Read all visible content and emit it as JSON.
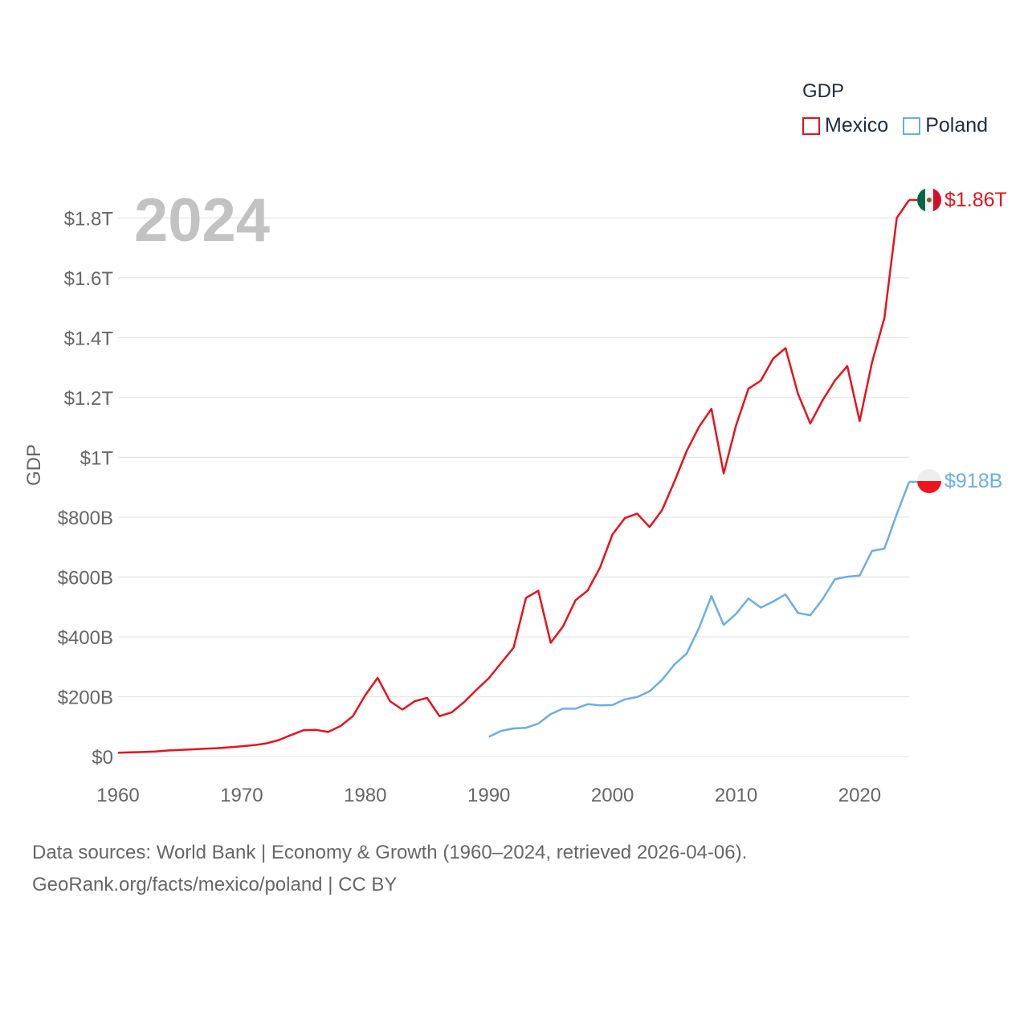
{
  "legend": {
    "title": "GDP",
    "mexico_label": "Mexico",
    "poland_label": "Poland"
  },
  "footer": {
    "line1": "Data sources: World Bank | Economy & Growth (1960–2024, retrieved 2026-04-06).",
    "line2": "GeoRank.org/facts/mexico/poland | CC BY"
  },
  "colors": {
    "mexico": "#e8121b",
    "poland": "#6aaee6",
    "grid": "#e6e6e6",
    "axis_text": "#666666",
    "watermark": "#c2c2c2"
  },
  "chart_data": {
    "type": "line",
    "title": "",
    "year_label": "2024",
    "xlabel": "",
    "ylabel": "GDP",
    "xlim": [
      1960,
      2024
    ],
    "ylim": [
      0,
      1.86
    ],
    "y_unit": "trillion USD",
    "x_ticks": [
      "1960",
      "1970",
      "1980",
      "1990",
      "2000",
      "2010",
      "2020"
    ],
    "y_ticks": [
      {
        "value": 0,
        "label": "$0"
      },
      {
        "value": 0.2,
        "label": "$200B"
      },
      {
        "value": 0.4,
        "label": "$400B"
      },
      {
        "value": 0.6,
        "label": "$600B"
      },
      {
        "value": 0.8,
        "label": "$800B"
      },
      {
        "value": 1.0,
        "label": "$1T"
      },
      {
        "value": 1.2,
        "label": "$1.2T"
      },
      {
        "value": 1.4,
        "label": "$1.4T"
      },
      {
        "value": 1.6,
        "label": "$1.6T"
      },
      {
        "value": 1.8,
        "label": "$1.8T"
      }
    ],
    "grid": true,
    "legend_position": "top-right",
    "series": [
      {
        "name": "Mexico",
        "end_label": "$1.86T",
        "x": [
          1960,
          1961,
          1962,
          1963,
          1964,
          1965,
          1966,
          1967,
          1968,
          1969,
          1970,
          1971,
          1972,
          1973,
          1974,
          1975,
          1976,
          1977,
          1978,
          1979,
          1980,
          1981,
          1982,
          1983,
          1984,
          1985,
          1986,
          1987,
          1988,
          1989,
          1990,
          1991,
          1992,
          1993,
          1994,
          1995,
          1996,
          1997,
          1998,
          1999,
          2000,
          2001,
          2002,
          2003,
          2004,
          2005,
          2006,
          2007,
          2008,
          2009,
          2010,
          2011,
          2012,
          2013,
          2014,
          2015,
          2016,
          2017,
          2018,
          2019,
          2020,
          2021,
          2022,
          2023,
          2024
        ],
        "values": [
          0.013,
          0.014,
          0.015,
          0.017,
          0.02,
          0.022,
          0.024,
          0.026,
          0.028,
          0.031,
          0.034,
          0.038,
          0.044,
          0.055,
          0.072,
          0.088,
          0.089,
          0.082,
          0.102,
          0.135,
          0.205,
          0.263,
          0.185,
          0.157,
          0.185,
          0.196,
          0.135,
          0.148,
          0.182,
          0.223,
          0.262,
          0.313,
          0.364,
          0.53,
          0.554,
          0.38,
          0.435,
          0.522,
          0.555,
          0.632,
          0.742,
          0.797,
          0.812,
          0.767,
          0.823,
          0.918,
          1.021,
          1.102,
          1.162,
          0.946,
          1.107,
          1.229,
          1.256,
          1.33,
          1.365,
          1.213,
          1.113,
          1.191,
          1.257,
          1.305,
          1.121,
          1.317,
          1.466,
          1.8,
          1.86
        ]
      },
      {
        "name": "Poland",
        "end_label": "$918B",
        "x": [
          1990,
          1991,
          1992,
          1993,
          1994,
          1995,
          1996,
          1997,
          1998,
          1999,
          2000,
          2001,
          2002,
          2003,
          2004,
          2005,
          2006,
          2007,
          2008,
          2009,
          2010,
          2011,
          2012,
          2013,
          2014,
          2015,
          2016,
          2017,
          2018,
          2019,
          2020,
          2021,
          2022,
          2023,
          2024
        ],
        "values": [
          0.066,
          0.086,
          0.094,
          0.096,
          0.11,
          0.142,
          0.16,
          0.16,
          0.175,
          0.171,
          0.172,
          0.191,
          0.199,
          0.218,
          0.256,
          0.307,
          0.344,
          0.43,
          0.536,
          0.44,
          0.477,
          0.528,
          0.498,
          0.518,
          0.542,
          0.48,
          0.472,
          0.526,
          0.593,
          0.601,
          0.605,
          0.687,
          0.695,
          0.81,
          0.918
        ]
      }
    ]
  }
}
